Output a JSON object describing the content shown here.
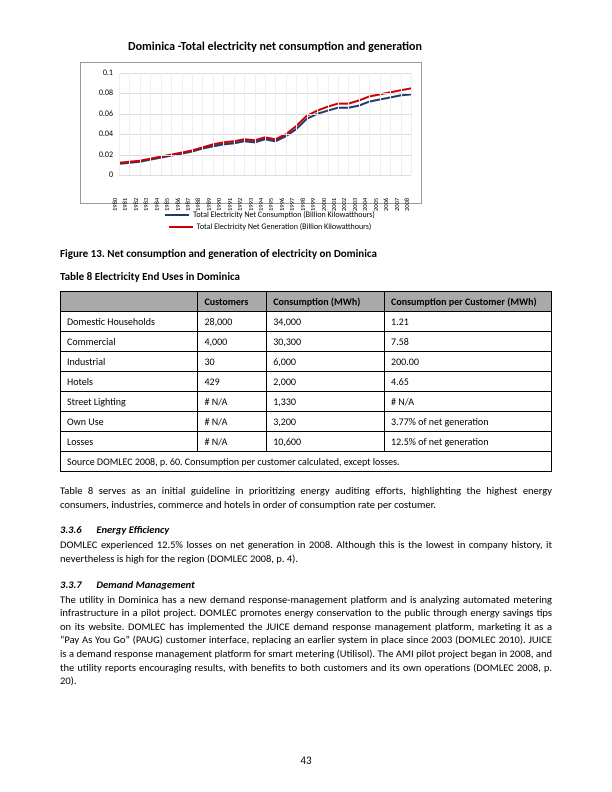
{
  "chart": {
    "type": "line",
    "title": "Dominica -Total electricity net consumption and generation",
    "title_fontsize": 12,
    "background_color": "#ffffff",
    "border_color": "#999999",
    "grid_color": "#dddddd",
    "y": {
      "min": 0,
      "max": 0.1,
      "ticks": [
        0,
        0.02,
        0.04,
        0.06,
        0.08,
        0.1
      ],
      "label_fontsize": 8
    },
    "x": {
      "labels": [
        "1980",
        "1981",
        "1982",
        "1983",
        "1984",
        "1985",
        "1986",
        "1987",
        "1988",
        "1989",
        "1990",
        "1991",
        "1992",
        "1993",
        "1994",
        "1995",
        "1996",
        "1997",
        "1998",
        "1999",
        "2000",
        "2001",
        "2002",
        "2003",
        "2004",
        "2005",
        "2006",
        "2007",
        "2008"
      ],
      "label_fontsize": 7
    },
    "series": [
      {
        "name": "Total Electricity Net Consumption (Billion Kilowatthours)",
        "color": "#1f3a6e",
        "line_width": 2,
        "values": [
          0.011,
          0.012,
          0.013,
          0.015,
          0.017,
          0.019,
          0.021,
          0.023,
          0.026,
          0.028,
          0.03,
          0.031,
          0.033,
          0.032,
          0.035,
          0.033,
          0.038,
          0.045,
          0.055,
          0.06,
          0.063,
          0.066,
          0.066,
          0.068,
          0.072,
          0.074,
          0.076,
          0.078,
          0.079
        ]
      },
      {
        "name": "Total Electricity Net Generation (Billion Kilowatthours)",
        "color": "#cc0000",
        "line_width": 2,
        "values": [
          0.012,
          0.013,
          0.014,
          0.016,
          0.018,
          0.02,
          0.022,
          0.024,
          0.027,
          0.03,
          0.032,
          0.033,
          0.035,
          0.034,
          0.037,
          0.035,
          0.04,
          0.048,
          0.058,
          0.063,
          0.067,
          0.07,
          0.07,
          0.073,
          0.077,
          0.079,
          0.081,
          0.083,
          0.085
        ]
      }
    ]
  },
  "figure_caption": "Figure 13. Net consumption and generation of electricity on Dominica",
  "table_caption": "Table 8 Electricity End Uses in Dominica",
  "table": {
    "columns": [
      "",
      "Customers",
      "Consumption (MWh)",
      "Consumption per Customer (MWh)"
    ],
    "col_widths": [
      "28%",
      "14%",
      "24%",
      "34%"
    ],
    "header_bg": "#a9a9a9",
    "border_color": "#000000",
    "font_size": 10,
    "rows": [
      [
        "Domestic Households",
        "28,000",
        "34,000",
        "1.21"
      ],
      [
        "Commercial",
        "4,000",
        "30,300",
        "7.58"
      ],
      [
        "Industrial",
        "30",
        "6,000",
        "200.00"
      ],
      [
        "Hotels",
        "429",
        "2,000",
        "4.65"
      ],
      [
        "Street Lighting",
        "# N/A",
        "1,330",
        "# N/A"
      ],
      [
        "Own Use",
        "# N/A",
        "3,200",
        "3.77% of net generation"
      ],
      [
        "Losses",
        "# N/A",
        "10,600",
        "12.5% of net generation"
      ]
    ],
    "source": "Source DOMLEC 2008, p. 60. Consumption per customer calculated, except losses."
  },
  "paragraphs": {
    "table_intro": "Table 8 serves as an initial guideline in prioritizing energy auditing efforts, highlighting the highest energy consumers, industries, commerce and hotels in order of consumption rate per costumer.",
    "sec336_num": "3.3.6",
    "sec336_title": "Energy Efficiency",
    "sec336_body": "DOMLEC experienced 12.5% losses on net generation in 2008. Although this is the lowest in company history, it nevertheless is high for the region (DOMLEC 2008, p. 4).",
    "sec337_num": "3.3.7",
    "sec337_title": "Demand Management",
    "sec337_body": "The utility in Dominica has a new demand response-management platform and is analyzing automated metering infrastructure in a pilot project. DOMLEC promotes energy conservation to the public through energy savings tips on its website. DOMLEC has implemented the JUICE demand response management platform, marketing it as a “Pay As You Go” (PAUG) customer interface, replacing an earlier system in place since 2003 (DOMLEC 2010). JUICE is a demand response management platform for smart metering (Utilisol). The AMI pilot project began in 2008, and the utility reports encouraging results, with benefits to both customers and its own operations (DOMLEC 2008, p. 20)."
  },
  "page_number": "43"
}
